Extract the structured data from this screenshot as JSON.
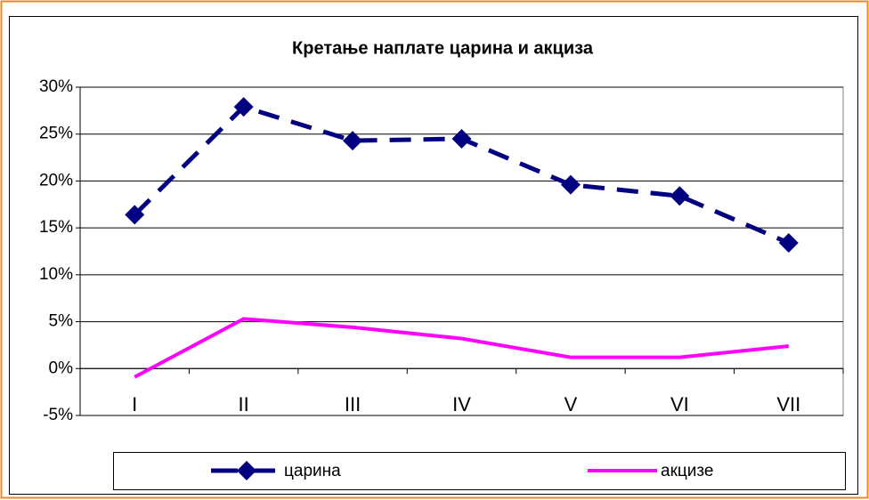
{
  "chart_data": {
    "type": "line",
    "title": "Кретање наплате царина и акциза",
    "categories": [
      "I",
      "II",
      "III",
      "IV",
      "V",
      "VI",
      "VII"
    ],
    "series": [
      {
        "name": "царина",
        "color": "#000080",
        "dashed": true,
        "marker": "diamond",
        "values": [
          16.4,
          27.9,
          24.3,
          24.5,
          19.6,
          18.4,
          13.4
        ]
      },
      {
        "name": "акцизе",
        "color": "#ff00ff",
        "dashed": false,
        "values": [
          -0.9,
          5.3,
          4.4,
          3.2,
          1.2,
          1.2,
          2.4
        ]
      }
    ],
    "ylim": [
      -5,
      30
    ],
    "yticks": [
      {
        "value": -5,
        "label": "-5%"
      },
      {
        "value": 0,
        "label": "0%"
      },
      {
        "value": 5,
        "label": "5%"
      },
      {
        "value": 10,
        "label": "10%"
      },
      {
        "value": 15,
        "label": "15%"
      },
      {
        "value": 20,
        "label": "20%"
      },
      {
        "value": 25,
        "label": "25%"
      },
      {
        "value": 30,
        "label": "30%"
      }
    ],
    "grid": true,
    "legend": "bottom"
  }
}
